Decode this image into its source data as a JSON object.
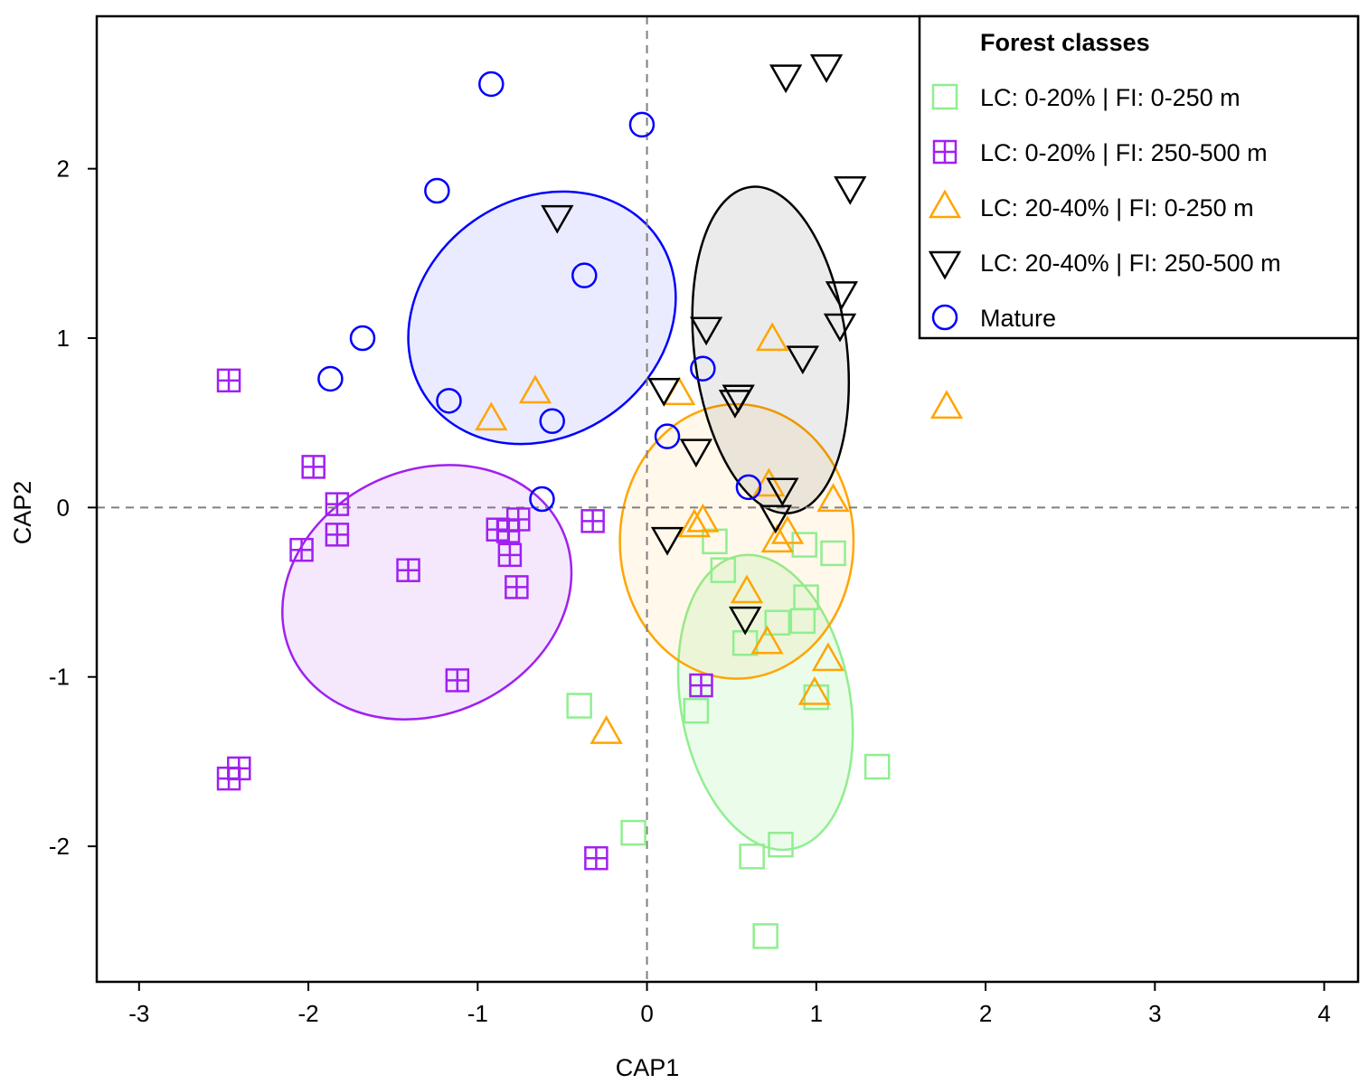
{
  "chart_data": {
    "type": "scatter",
    "xlabel": "CAP1",
    "ylabel": "CAP2",
    "xlim": [
      -3.25,
      4.2
    ],
    "ylim": [
      -2.8,
      2.9
    ],
    "x_ticks": [
      -3,
      -2,
      -1,
      0,
      1,
      2,
      3,
      4
    ],
    "x_tick_labels": [
      "-3",
      "-2",
      "-1",
      "0",
      "1",
      "2",
      "3",
      "4"
    ],
    "y_ticks": [
      -2,
      -1,
      0,
      1,
      2
    ],
    "y_tick_labels": [
      "-2",
      "-1",
      "0",
      "1",
      "2"
    ],
    "reference_lines": {
      "x": 0,
      "y": 0,
      "style": "dashed"
    },
    "grid": false,
    "legend": {
      "title": "Forest classes",
      "position": "top-right"
    },
    "series": [
      {
        "name": "LC: 0-20% | FI: 0-250 m",
        "marker": "square",
        "color": "#90ee90",
        "points": [
          [
            0.4,
            -0.2
          ],
          [
            0.45,
            -0.37
          ],
          [
            0.93,
            -0.22
          ],
          [
            1.1,
            -0.27
          ],
          [
            0.94,
            -0.53
          ],
          [
            0.77,
            -0.68
          ],
          [
            0.92,
            -0.67
          ],
          [
            0.58,
            -0.8
          ],
          [
            1.0,
            -1.12
          ],
          [
            0.29,
            -1.2
          ],
          [
            -0.4,
            -1.17
          ],
          [
            1.36,
            -1.53
          ],
          [
            -0.08,
            -1.92
          ],
          [
            0.62,
            -2.06
          ],
          [
            0.79,
            -1.99
          ],
          [
            0.7,
            -2.53
          ]
        ],
        "ellipse": {
          "cx": 0.7,
          "cy": -1.15,
          "rx": 0.88,
          "ry": 0.5,
          "angle": 100,
          "fill": "rgba(144,238,144,0.18)"
        }
      },
      {
        "name": "LC: 0-20% | FI: 250-500 m",
        "marker": "boxed-plus",
        "color": "#a020f0",
        "points": [
          [
            -2.47,
            0.75
          ],
          [
            -1.97,
            0.24
          ],
          [
            -1.83,
            0.02
          ],
          [
            -1.83,
            -0.16
          ],
          [
            -2.04,
            -0.25
          ],
          [
            -1.41,
            -0.37
          ],
          [
            -0.88,
            -0.13
          ],
          [
            -0.82,
            -0.14
          ],
          [
            -0.76,
            -0.07
          ],
          [
            -0.81,
            -0.28
          ],
          [
            -0.77,
            -0.47
          ],
          [
            -0.32,
            -0.08
          ],
          [
            -1.12,
            -1.02
          ],
          [
            0.32,
            -1.05
          ],
          [
            -2.47,
            -1.6
          ],
          [
            -2.41,
            -1.54
          ],
          [
            -0.3,
            -2.07
          ]
        ],
        "ellipse": {
          "cx": -1.3,
          "cy": -0.5,
          "rx": 0.88,
          "ry": 0.72,
          "angle": 25,
          "fill": "rgba(160,32,240,0.10)"
        }
      },
      {
        "name": "LC: 20-40% | FI: 0-250 m",
        "marker": "triangle-up",
        "color": "#ffa500",
        "points": [
          [
            -0.92,
            0.52
          ],
          [
            -0.66,
            0.68
          ],
          [
            0.74,
            0.99
          ],
          [
            0.19,
            0.67
          ],
          [
            1.77,
            0.59
          ],
          [
            0.72,
            0.13
          ],
          [
            1.1,
            0.04
          ],
          [
            0.33,
            -0.08
          ],
          [
            0.28,
            -0.11
          ],
          [
            0.83,
            -0.15
          ],
          [
            0.77,
            -0.2
          ],
          [
            0.59,
            -0.5
          ],
          [
            0.71,
            -0.8
          ],
          [
            1.07,
            -0.9
          ],
          [
            0.99,
            -1.1
          ],
          [
            -0.24,
            -1.33
          ]
        ],
        "ellipse": {
          "cx": 0.53,
          "cy": -0.2,
          "rx": 0.69,
          "ry": 0.81,
          "angle": 0,
          "fill": "rgba(255,165,0,0.08)"
        }
      },
      {
        "name": "LC: 20-40% | FI: 250-500 m",
        "marker": "triangle-down",
        "color": "#000000",
        "points": [
          [
            0.82,
            2.55
          ],
          [
            1.06,
            2.61
          ],
          [
            1.2,
            1.89
          ],
          [
            -0.53,
            1.72
          ],
          [
            1.15,
            1.27
          ],
          [
            0.35,
            1.06
          ],
          [
            1.14,
            1.08
          ],
          [
            0.92,
            0.89
          ],
          [
            0.1,
            0.7
          ],
          [
            0.54,
            0.66
          ],
          [
            0.52,
            0.63
          ],
          [
            0.29,
            0.34
          ],
          [
            0.8,
            0.11
          ],
          [
            0.76,
            -0.05
          ],
          [
            0.12,
            -0.18
          ],
          [
            0.58,
            -0.65
          ]
        ],
        "ellipse": {
          "cx": 0.73,
          "cy": 0.93,
          "rx": 0.97,
          "ry": 0.45,
          "angle": 97,
          "fill": "rgba(0,0,0,0.08)"
        }
      },
      {
        "name": "Mature",
        "marker": "circle",
        "color": "#0000ff",
        "points": [
          [
            -0.92,
            2.5
          ],
          [
            -0.03,
            2.26
          ],
          [
            -1.24,
            1.87
          ],
          [
            -0.37,
            1.37
          ],
          [
            -1.68,
            1.0
          ],
          [
            -1.87,
            0.76
          ],
          [
            -1.17,
            0.63
          ],
          [
            -0.56,
            0.51
          ],
          [
            0.33,
            0.82
          ],
          [
            0.12,
            0.42
          ],
          [
            0.6,
            0.12
          ],
          [
            -0.62,
            0.05
          ]
        ],
        "ellipse": {
          "cx": -0.62,
          "cy": 1.12,
          "rx": 0.83,
          "ry": 0.7,
          "angle": 35,
          "fill": "rgba(0,0,255,0.08)"
        }
      }
    ]
  }
}
